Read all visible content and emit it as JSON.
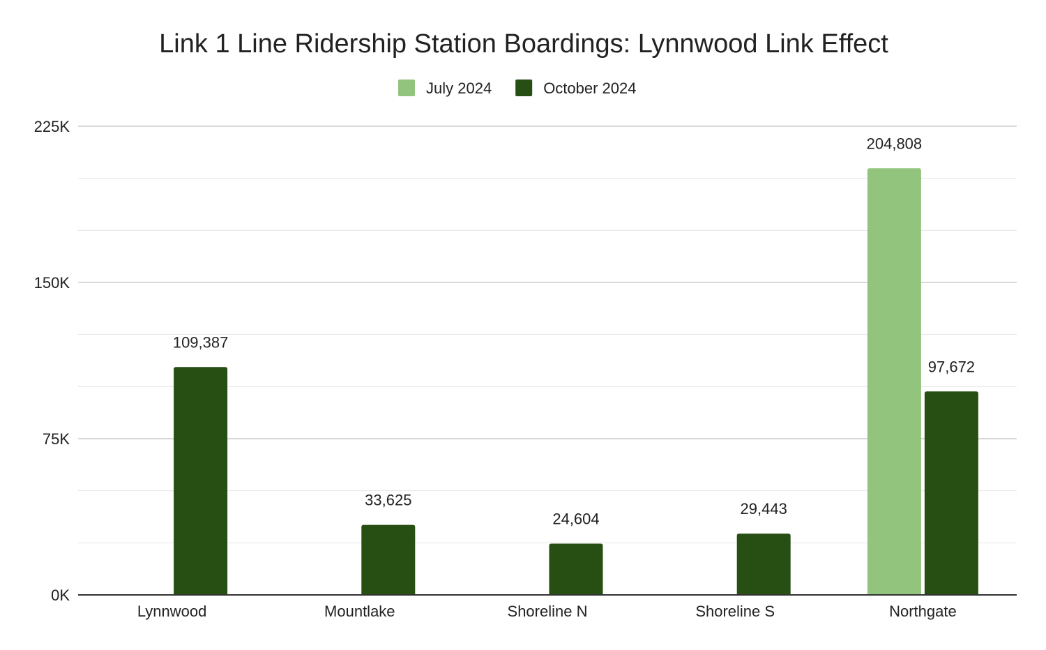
{
  "chart_data": {
    "type": "bar",
    "title": "Link 1 Line Ridership Station Boardings: Lynnwood Link Effect",
    "categories": [
      "Lynnwood",
      "Mountlake",
      "Shoreline N",
      "Shoreline S",
      "Northgate"
    ],
    "series": [
      {
        "name": "July 2024",
        "color": "#93c47d",
        "values": [
          null,
          null,
          null,
          null,
          204808
        ]
      },
      {
        "name": "October 2024",
        "color": "#274e13",
        "values": [
          109387,
          33625,
          24604,
          29443,
          97672
        ]
      }
    ],
    "data_labels": [
      [
        "",
        "",
        "",
        "",
        "204,808"
      ],
      [
        "109,387",
        "33,625",
        "24,604",
        "29,443",
        "97,672"
      ]
    ],
    "y_ticks": [
      0,
      75000,
      150000,
      225000
    ],
    "y_tick_labels": [
      "0K",
      "75K",
      "150K",
      "225K"
    ],
    "ylim": [
      0,
      225000
    ],
    "minor_grid_step": 25000,
    "legend_position": "top-center",
    "grid": true,
    "xlabel": "",
    "ylabel": ""
  }
}
